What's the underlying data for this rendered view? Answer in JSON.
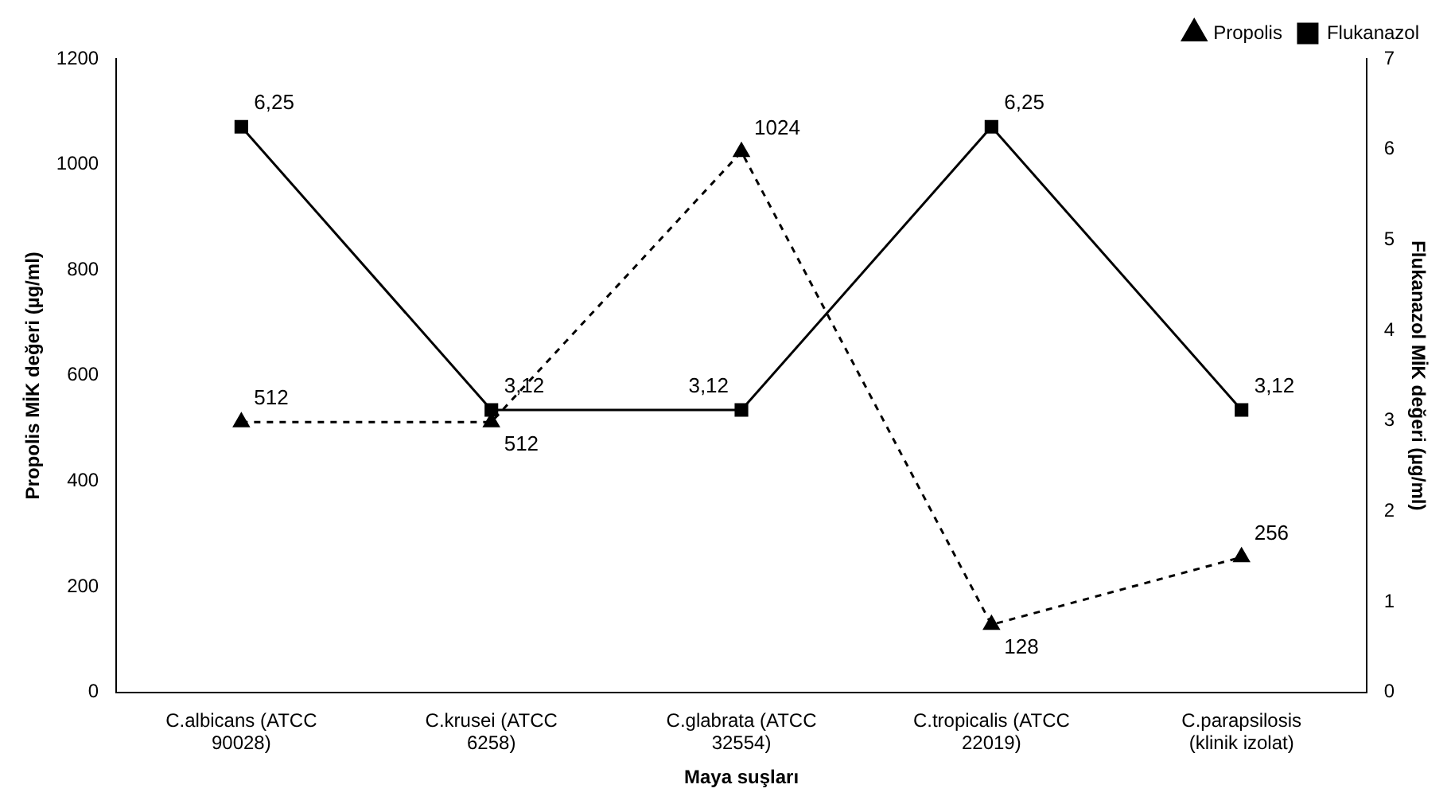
{
  "chart_data": {
    "type": "line",
    "xlabel": "Maya suşları",
    "ylabel": "Propolis MİK değeri (µg/ml)",
    "y2label": "Flukanazol MİK değeri (µg/ml)",
    "categories": [
      "C.albicans (ATCC 90028)",
      "C.krusei (ATCC 6258)",
      "C.glabrata (ATCC 32554)",
      "C.tropicalis (ATCC 22019)",
      "C.parapsilosis (klinik izolat)"
    ],
    "series": [
      {
        "name": "Propolis",
        "color": "#000000",
        "values": [
          512,
          512,
          1024,
          128,
          256
        ],
        "value_labels": [
          "512",
          "512",
          "1024",
          "128",
          "256"
        ],
        "marker": "triangle",
        "line_style": "dashed"
      },
      {
        "name": "Flukanazol",
        "color": "#000000",
        "values": [
          6.25,
          3.12,
          3.12,
          6.25,
          3.12
        ],
        "value_labels": [
          "6,25",
          "3,12",
          "3,12",
          "6,25",
          "3,12"
        ],
        "marker": "square",
        "line_style": "solid",
        "axis": "y2"
      }
    ],
    "ylim": [
      0,
      1200
    ],
    "yticks": [
      0,
      200,
      400,
      600,
      800,
      1000,
      1200
    ],
    "y2lim": [
      0,
      7
    ],
    "y2ticks": [
      0,
      1,
      2,
      3,
      4,
      5,
      6,
      7
    ],
    "legend": "top right",
    "grid": false
  }
}
